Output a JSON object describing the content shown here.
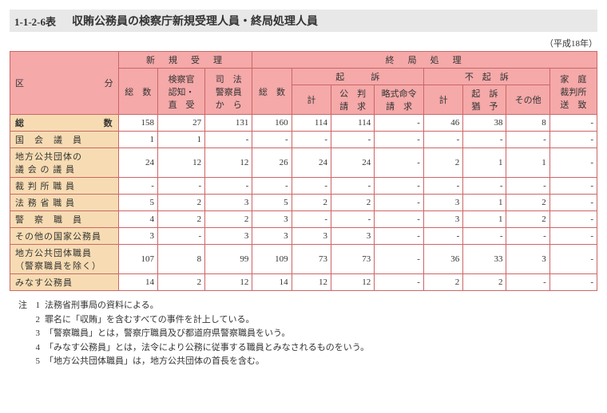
{
  "header": {
    "table_no": "1-1-2-6表",
    "title": "収賄公務員の検察庁新規受理人員・終局処理人員",
    "year": "（平成18年）"
  },
  "columns": {
    "kubun": "区　　　　　分",
    "shinki": "新　規　受　理",
    "shukyoku": "終　局　処　理",
    "sousuu": "総　数",
    "kensatsukan": "検察官\n認知・\n直　受",
    "shihou": "司　法\n警察員\nか　ら",
    "kiso": "起　　　訴",
    "fukiso": "不　起　訴",
    "katei": "家　庭\n裁判所\n送　致",
    "kei": "計",
    "koupan": "公　判\n請　求",
    "ryakushiki": "略式命令\n請　求",
    "kisoyuyo": "起　訴\n猶　予",
    "sonota": "その他"
  },
  "rows": [
    {
      "label": "総　　　　　　　数",
      "cls": "total",
      "v": [
        "158",
        "27",
        "131",
        "160",
        "114",
        "114",
        "-",
        "46",
        "38",
        "8",
        "-"
      ]
    },
    {
      "label": "国　会　議　員",
      "v": [
        "1",
        "1",
        "-",
        "-",
        "-",
        "-",
        "-",
        "-",
        "-",
        "-",
        "-"
      ]
    },
    {
      "label": "地方公共団体の\n議 会 の 議 員",
      "v": [
        "24",
        "12",
        "12",
        "26",
        "24",
        "24",
        "-",
        "2",
        "1",
        "1",
        "-"
      ]
    },
    {
      "label": "裁 判 所 職 員",
      "v": [
        "-",
        "-",
        "-",
        "-",
        "-",
        "-",
        "-",
        "-",
        "-",
        "-",
        "-"
      ]
    },
    {
      "label": "法 務 省 職 員",
      "v": [
        "5",
        "2",
        "3",
        "5",
        "2",
        "2",
        "-",
        "3",
        "1",
        "2",
        "-"
      ]
    },
    {
      "label": "警　察　職　員",
      "v": [
        "4",
        "2",
        "2",
        "3",
        "-",
        "-",
        "-",
        "3",
        "1",
        "2",
        "-"
      ]
    },
    {
      "label": "その他の国家公務員",
      "v": [
        "3",
        "-",
        "3",
        "3",
        "3",
        "3",
        "-",
        "-",
        "-",
        "-",
        "-"
      ]
    },
    {
      "label": "地方公共団体職員\n（警察職員を除く）",
      "v": [
        "107",
        "8",
        "99",
        "109",
        "73",
        "73",
        "-",
        "36",
        "33",
        "3",
        "-"
      ]
    },
    {
      "label": "みなす公務員",
      "v": [
        "14",
        "2",
        "12",
        "14",
        "12",
        "12",
        "-",
        "2",
        "2",
        "-",
        "-"
      ]
    }
  ],
  "notes": {
    "lead": "注",
    "items": [
      "法務省刑事局の資料による。",
      "罪名に「収賄」を含むすべての事件を計上している。",
      "「警察職員」とは，警察庁職員及び都道府県警察職員をいう。",
      "「みなす公務員」とは，法令により公務に従事する職員とみなされるものをいう。",
      "「地方公共団体職員」は，地方公共団体の首長を含む。"
    ]
  }
}
